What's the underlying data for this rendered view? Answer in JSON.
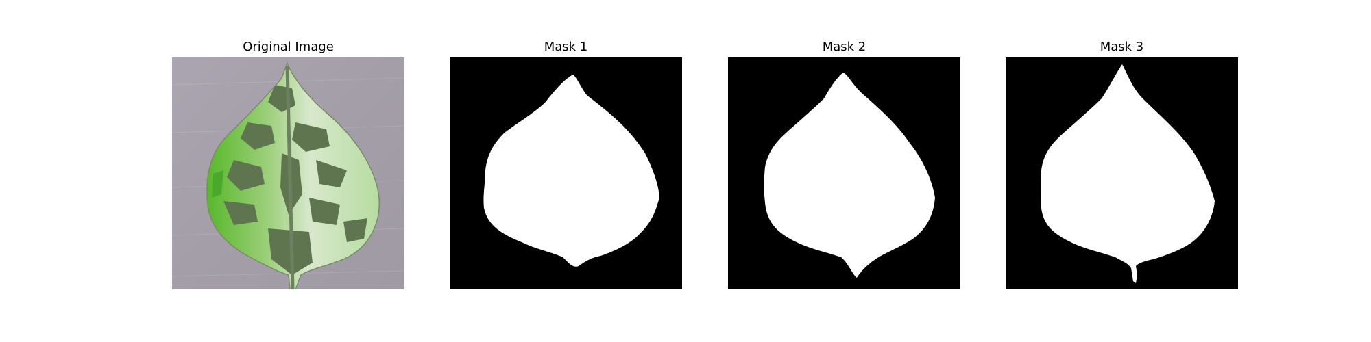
{
  "panels": [
    {
      "title": "Original Image",
      "kind": "photo"
    },
    {
      "title": "Mask 1",
      "kind": "mask"
    },
    {
      "title": "Mask 2",
      "kind": "mask"
    },
    {
      "title": "Mask 3",
      "kind": "mask"
    }
  ],
  "colors": {
    "mask_background": "#000000",
    "mask_foreground": "#ffffff",
    "photo_background": "#a8a3ad",
    "leaf_green": "#6fbf3a",
    "leaf_dark": "#5f7550"
  }
}
